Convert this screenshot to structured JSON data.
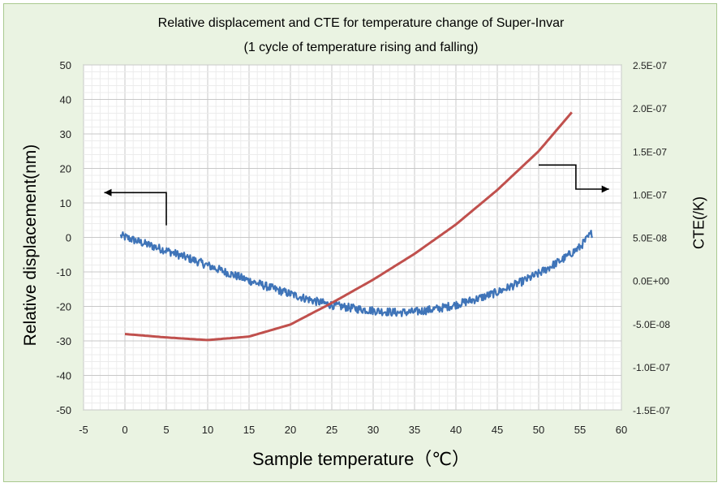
{
  "chart_data": {
    "type": "line",
    "title": "Relative displacement and CTE for temperature change of Super-Invar",
    "subtitle": "(1 cycle of temperature rising and falling)",
    "xlabel": "Sample temperature（℃）",
    "ylabel_left": "Relative displacement(nm)",
    "ylabel_right": "CTE(/K)",
    "xlim": [
      -5,
      60
    ],
    "ylim_left": [
      -50,
      50
    ],
    "ylim_right": [
      -1.5e-07,
      2.5e-07
    ],
    "x_ticks": [
      "-5",
      "0",
      "5",
      "10",
      "15",
      "20",
      "25",
      "30",
      "35",
      "40",
      "45",
      "50",
      "55",
      "60"
    ],
    "y_left_ticks": [
      "50",
      "40",
      "30",
      "20",
      "10",
      "0",
      "-10",
      "-20",
      "-30",
      "-40",
      "-50"
    ],
    "y_right_ticks": [
      "2.5E-07",
      "2.0E-07",
      "1.5E-07",
      "1.0E-07",
      "5.0E-08",
      "0.0E+00",
      "-5.0E-08",
      "-1.0E-07",
      "-1.5E-07"
    ],
    "grid": true,
    "series": [
      {
        "axis": "left",
        "color": "#3f74b8",
        "style": "noisy",
        "x": [
          -0.5,
          2,
          5,
          8,
          10,
          12,
          15,
          18,
          20,
          23,
          25,
          28,
          30,
          33,
          35,
          38,
          40,
          43,
          45,
          48,
          50,
          53,
          55,
          56.5
        ],
        "y": [
          0.5,
          -1.5,
          -3.8,
          -6.3,
          -8.1,
          -9.9,
          -12.5,
          -14.9,
          -16.4,
          -18.5,
          -19.6,
          -20.7,
          -21.2,
          -21.8,
          -21.6,
          -20.6,
          -19.5,
          -17.5,
          -15.9,
          -12.8,
          -10.5,
          -6.2,
          -2.8,
          1.5
        ]
      },
      {
        "axis": "right",
        "color": "#c0504d",
        "style": "smooth",
        "x": [
          0,
          5,
          10,
          15,
          20,
          25,
          30,
          35,
          40,
          45,
          50,
          54
        ],
        "y": [
          -6.2e-08,
          -6.6e-08,
          -6.9e-08,
          -6.5e-08,
          -5.1e-08,
          -2.6e-08,
          1e-09,
          3.1e-08,
          6.5e-08,
          1.05e-07,
          1.5e-07,
          1.95e-07
        ]
      }
    ],
    "annotations": [
      {
        "type": "arrow",
        "points_to": "left-axis",
        "x": [
          5,
          5,
          -2.5
        ],
        "y_left": [
          3.5,
          13,
          13
        ]
      },
      {
        "type": "arrow",
        "points_to": "right-axis",
        "x": [
          50,
          54.5,
          54.5,
          58.5
        ],
        "y_left": [
          21,
          21,
          14,
          14
        ]
      }
    ]
  }
}
